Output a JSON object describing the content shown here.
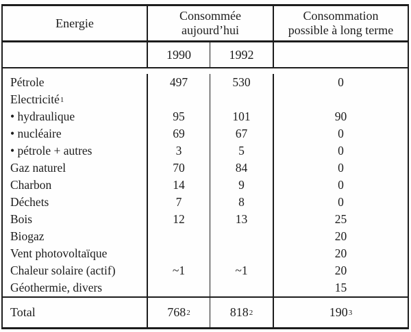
{
  "table": {
    "header": {
      "col_energie": "Energie",
      "col_consommee_line1": "Consommée",
      "col_consommee_line2": "aujourd’hui",
      "col_possible_line1": "Consommation",
      "col_possible_line2": "possible à long terme",
      "year1": "1990",
      "year2": "1992"
    },
    "rows": [
      {
        "label": "Pétrole",
        "sup": "",
        "v1990": "497",
        "v1992": "530",
        "vlong": "0"
      },
      {
        "label": "Electricité",
        "sup": "1",
        "v1990": "",
        "v1992": "",
        "vlong": ""
      },
      {
        "label": "• hydraulique",
        "sup": "",
        "v1990": "95",
        "v1992": "101",
        "vlong": "90"
      },
      {
        "label": "• nucléaire",
        "sup": "",
        "v1990": "69",
        "v1992": "67",
        "vlong": "0"
      },
      {
        "label": "• pétrole + autres",
        "sup": "",
        "v1990": "3",
        "v1992": "5",
        "vlong": "0"
      },
      {
        "label": "Gaz naturel",
        "sup": "",
        "v1990": "70",
        "v1992": "84",
        "vlong": "0"
      },
      {
        "label": "Charbon",
        "sup": "",
        "v1990": "14",
        "v1992": "9",
        "vlong": "0"
      },
      {
        "label": "Déchets",
        "sup": "",
        "v1990": "7",
        "v1992": "8",
        "vlong": "0"
      },
      {
        "label": "Bois",
        "sup": "",
        "v1990": "12",
        "v1992": "13",
        "vlong": "25"
      },
      {
        "label": "Biogaz",
        "sup": "",
        "v1990": "",
        "v1992": "",
        "vlong": "20"
      },
      {
        "label": "Vent photovoltaïque",
        "sup": "",
        "v1990": "",
        "v1992": "",
        "vlong": "20"
      },
      {
        "label": "Chaleur solaire (actif)",
        "sup": "",
        "v1990": "~1",
        "v1992": "~1",
        "vlong": "20"
      },
      {
        "label": "Géothermie, divers",
        "sup": "",
        "v1990": "",
        "v1992": "",
        "vlong": "15"
      }
    ],
    "total": {
      "label": "Total",
      "v1990": "768",
      "v1990_sup": "2",
      "v1992": "818",
      "v1992_sup": "2",
      "vlong": "190",
      "vlong_sup": "3"
    }
  }
}
